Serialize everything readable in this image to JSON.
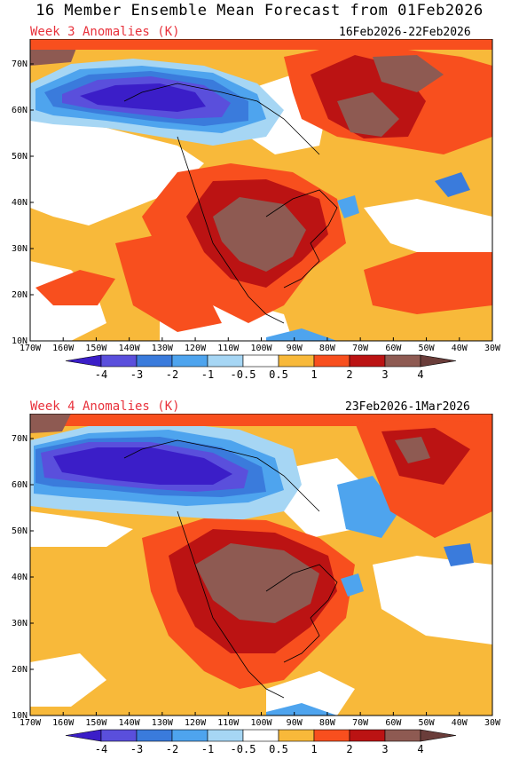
{
  "title": "16 Member Ensemble Mean Forecast from 01Feb2026",
  "palette": {
    "deep_blue": "#3b1ec8",
    "blue": "#5a4fdc",
    "mid_blue": "#3a7bdc",
    "light_blue": "#4ea4ee",
    "pale_blue": "#a6d6f4",
    "yellow_orange": "#f8b93a",
    "orange_red": "#f84f1e",
    "dark_red": "#bb1313",
    "brown": "#8e5a52",
    "white": "#ffffff"
  },
  "axes": {
    "lat_labels": [
      "70N",
      "60N",
      "50N",
      "40N",
      "30N",
      "20N",
      "10N"
    ],
    "lon_labels": [
      "170W",
      "160W",
      "150W",
      "140W",
      "130W",
      "120W",
      "110W",
      "100W",
      "90W",
      "80W",
      "70W",
      "60W",
      "50W",
      "40W",
      "30W"
    ]
  },
  "colorbar": {
    "labels": [
      "-4",
      "-3",
      "-2",
      "-1",
      "-0.5",
      "0.5",
      "1",
      "2",
      "3",
      "4"
    ],
    "colors": [
      "#3b1ec8",
      "#5a4fdc",
      "#3a7bdc",
      "#4ea4ee",
      "#a6d6f4",
      "#ffffff",
      "#f8b93a",
      "#f84f1e",
      "#bb1313",
      "#8e5a52",
      "#6a3d3a"
    ]
  },
  "panels": [
    {
      "label": "Week 3 Anomalies (K)",
      "dates": "16Feb2026-22Feb2026"
    },
    {
      "label": "Week 4 Anomalies (K)",
      "dates": "23Feb2026-1Mar2026"
    }
  ]
}
